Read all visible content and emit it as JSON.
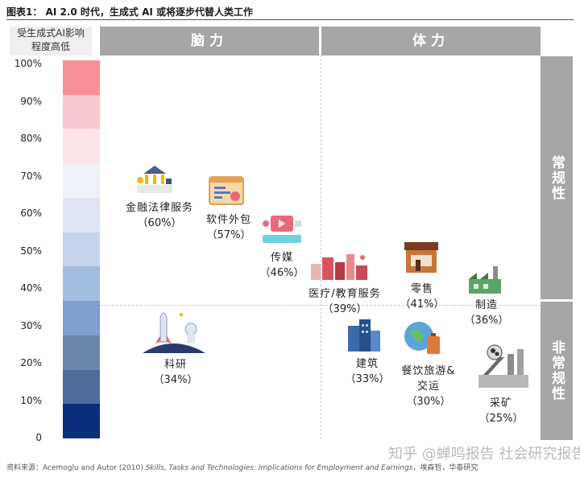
{
  "figure_title": "图表1： AI 2.0 时代，生成式 AI 或将逐步代替人类工作",
  "legend_title_line1": "受生成式AI影响",
  "legend_title_line2": "程度高低",
  "headers": {
    "mental": "脑力",
    "physical": "体力",
    "routine": "常规性",
    "nonroutine": "非常规性"
  },
  "scale": {
    "ticks": [
      "100%",
      "90%",
      "80%",
      "70%",
      "60%",
      "50%",
      "40%",
      "30%",
      "20%",
      "10%",
      "0"
    ],
    "colors": [
      "#f78f98",
      "#f9c9cf",
      "#fbe4e8",
      "#eef1f8",
      "#dfe5f3",
      "#c5d3ec",
      "#a3bce2",
      "#7ea0d0",
      "#6b85ad",
      "#4d6c9c",
      "#0b2e7a"
    ]
  },
  "chart_data": {
    "type": "scatter",
    "title": "",
    "x_axis": [
      "脑力",
      "体力"
    ],
    "y_axis": [
      "常规性",
      "非常规性"
    ],
    "items": [
      {
        "name": "金融法律服务",
        "value": 60,
        "label": "（60%）",
        "icon": "finance-icon"
      },
      {
        "name": "软件外包",
        "value": 57,
        "label": "（57%）",
        "icon": "software-icon"
      },
      {
        "name": "传媒",
        "value": 46,
        "label": "（46%）",
        "icon": "media-icon"
      },
      {
        "name": "医疗/教育服务",
        "value": 39,
        "label": "（39%）",
        "icon": "medical-education-icon"
      },
      {
        "name": "零售",
        "value": 41,
        "label": "（41%）",
        "icon": "store-icon"
      },
      {
        "name": "制造",
        "value": 36,
        "label": "（36%）",
        "icon": "factory-icon"
      },
      {
        "name": "科研",
        "value": 34,
        "label": "（34%）",
        "icon": "rocket-icon"
      },
      {
        "name": "建筑",
        "value": 33,
        "label": "（33%）",
        "icon": "building-icon"
      },
      {
        "name_line1": "餐饮旅游&",
        "name_line2": "交运",
        "value": 30,
        "label": "（30%）",
        "icon": "travel-icon"
      },
      {
        "name": "采矿",
        "value": 25,
        "label": "（25%）",
        "icon": "mining-icon"
      }
    ]
  },
  "source": {
    "prefix": "资料来源：Acemoglu and Autor (2010) ",
    "title": "Skills, Tasks and Technologies: Implications for Employment and Earnings",
    "suffix": "，埃森哲，华泰研究"
  },
  "watermark": "知乎 @蝉鸣报告 社会研究报告"
}
